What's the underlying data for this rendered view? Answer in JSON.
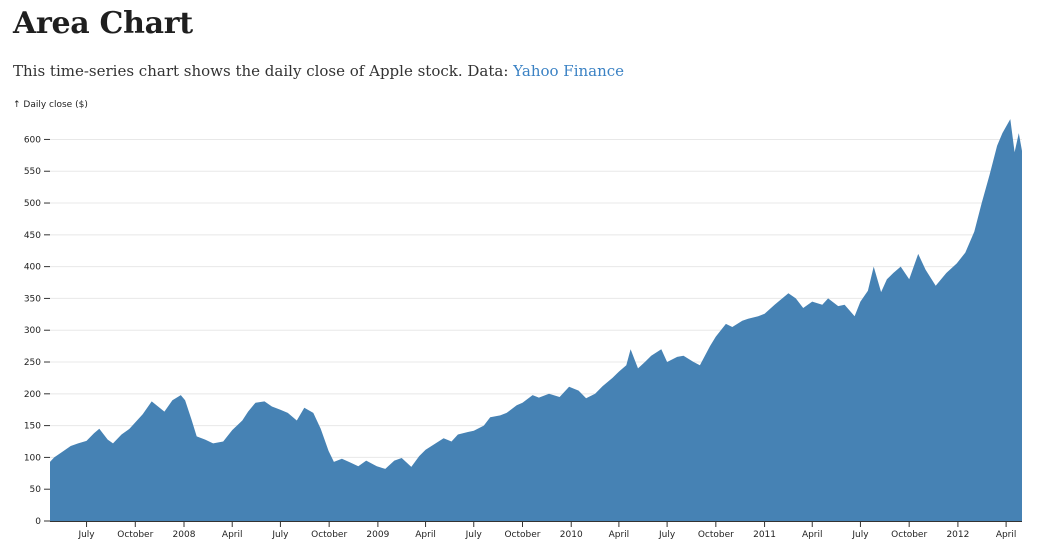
{
  "page": {
    "title": "Area Chart",
    "description": "This time-series chart shows the daily close of Apple stock. Data: ",
    "link_text": "Yahoo Finance"
  },
  "chart_data": {
    "type": "area",
    "ylabel": "↑ Daily close ($)",
    "xlabel": "",
    "ylim": [
      0,
      640
    ],
    "xlim": [
      "2007-04-23",
      "2012-05-01"
    ],
    "grid": "horizontal",
    "fill_color": "#4682b4",
    "y_ticks": [
      0,
      50,
      100,
      150,
      200,
      250,
      300,
      350,
      400,
      450,
      500,
      550,
      600
    ],
    "x_ticks": [
      {
        "date": "2007-07-01",
        "label": "July"
      },
      {
        "date": "2007-10-01",
        "label": "October"
      },
      {
        "date": "2008-01-01",
        "label": "2008"
      },
      {
        "date": "2008-04-01",
        "label": "April"
      },
      {
        "date": "2008-07-01",
        "label": "July"
      },
      {
        "date": "2008-10-01",
        "label": "October"
      },
      {
        "date": "2009-01-01",
        "label": "2009"
      },
      {
        "date": "2009-04-01",
        "label": "April"
      },
      {
        "date": "2009-07-01",
        "label": "July"
      },
      {
        "date": "2009-10-01",
        "label": "October"
      },
      {
        "date": "2010-01-01",
        "label": "2010"
      },
      {
        "date": "2010-04-01",
        "label": "April"
      },
      {
        "date": "2010-07-01",
        "label": "July"
      },
      {
        "date": "2010-10-01",
        "label": "October"
      },
      {
        "date": "2011-01-01",
        "label": "2011"
      },
      {
        "date": "2011-04-01",
        "label": "April"
      },
      {
        "date": "2011-07-01",
        "label": "July"
      },
      {
        "date": "2011-10-01",
        "label": "October"
      },
      {
        "date": "2012-01-01",
        "label": "2012"
      },
      {
        "date": "2012-04-01",
        "label": "April"
      }
    ],
    "series": [
      {
        "points": [
          [
            "2007-04-23",
            93
          ],
          [
            "2007-05-01",
            100
          ],
          [
            "2007-05-15",
            108
          ],
          [
            "2007-06-01",
            118
          ],
          [
            "2007-06-15",
            122
          ],
          [
            "2007-07-01",
            126
          ],
          [
            "2007-07-15",
            138
          ],
          [
            "2007-07-25",
            145
          ],
          [
            "2007-08-10",
            128
          ],
          [
            "2007-08-20",
            122
          ],
          [
            "2007-09-05",
            136
          ],
          [
            "2007-09-20",
            145
          ],
          [
            "2007-10-01",
            155
          ],
          [
            "2007-10-15",
            168
          ],
          [
            "2007-11-01",
            188
          ],
          [
            "2007-11-10",
            182
          ],
          [
            "2007-11-25",
            172
          ],
          [
            "2007-12-10",
            190
          ],
          [
            "2007-12-26",
            198
          ],
          [
            "2008-01-03",
            190
          ],
          [
            "2008-01-15",
            160
          ],
          [
            "2008-01-25",
            133
          ],
          [
            "2008-02-10",
            128
          ],
          [
            "2008-02-25",
            122
          ],
          [
            "2008-03-15",
            125
          ],
          [
            "2008-04-01",
            143
          ],
          [
            "2008-04-20",
            158
          ],
          [
            "2008-05-01",
            172
          ],
          [
            "2008-05-15",
            186
          ],
          [
            "2008-06-01",
            188
          ],
          [
            "2008-06-15",
            180
          ],
          [
            "2008-07-01",
            175
          ],
          [
            "2008-07-15",
            170
          ],
          [
            "2008-08-01",
            158
          ],
          [
            "2008-08-15",
            178
          ],
          [
            "2008-09-01",
            170
          ],
          [
            "2008-09-15",
            145
          ],
          [
            "2008-09-30",
            110
          ],
          [
            "2008-10-10",
            93
          ],
          [
            "2008-10-25",
            98
          ],
          [
            "2008-11-10",
            92
          ],
          [
            "2008-11-25",
            86
          ],
          [
            "2008-12-10",
            95
          ],
          [
            "2008-12-30",
            86
          ],
          [
            "2009-01-15",
            82
          ],
          [
            "2009-02-01",
            95
          ],
          [
            "2009-02-15",
            99
          ],
          [
            "2009-03-05",
            85
          ],
          [
            "2009-03-20",
            102
          ],
          [
            "2009-04-01",
            112
          ],
          [
            "2009-04-20",
            122
          ],
          [
            "2009-05-05",
            130
          ],
          [
            "2009-05-20",
            125
          ],
          [
            "2009-06-01",
            136
          ],
          [
            "2009-06-20",
            140
          ],
          [
            "2009-07-01",
            142
          ],
          [
            "2009-07-20",
            150
          ],
          [
            "2009-08-01",
            163
          ],
          [
            "2009-08-20",
            166
          ],
          [
            "2009-09-01",
            170
          ],
          [
            "2009-09-20",
            182
          ],
          [
            "2009-10-01",
            186
          ],
          [
            "2009-10-20",
            198
          ],
          [
            "2009-11-01",
            194
          ],
          [
            "2009-11-20",
            200
          ],
          [
            "2009-12-10",
            195
          ],
          [
            "2009-12-28",
            211
          ],
          [
            "2010-01-15",
            205
          ],
          [
            "2010-01-29",
            193
          ],
          [
            "2010-02-15",
            200
          ],
          [
            "2010-03-01",
            212
          ],
          [
            "2010-03-20",
            225
          ],
          [
            "2010-04-01",
            235
          ],
          [
            "2010-04-15",
            245
          ],
          [
            "2010-04-23",
            270
          ],
          [
            "2010-05-07",
            240
          ],
          [
            "2010-05-20",
            250
          ],
          [
            "2010-06-01",
            260
          ],
          [
            "2010-06-20",
            270
          ],
          [
            "2010-07-01",
            250
          ],
          [
            "2010-07-20",
            258
          ],
          [
            "2010-08-01",
            260
          ],
          [
            "2010-08-20",
            250
          ],
          [
            "2010-09-01",
            245
          ],
          [
            "2010-09-20",
            275
          ],
          [
            "2010-10-01",
            290
          ],
          [
            "2010-10-20",
            310
          ],
          [
            "2010-11-01",
            305
          ],
          [
            "2010-11-20",
            315
          ],
          [
            "2010-12-01",
            318
          ],
          [
            "2010-12-20",
            322
          ],
          [
            "2011-01-01",
            326
          ],
          [
            "2011-01-20",
            340
          ],
          [
            "2011-02-15",
            358
          ],
          [
            "2011-03-01",
            350
          ],
          [
            "2011-03-15",
            335
          ],
          [
            "2011-04-01",
            345
          ],
          [
            "2011-04-20",
            340
          ],
          [
            "2011-05-01",
            350
          ],
          [
            "2011-05-20",
            338
          ],
          [
            "2011-06-01",
            340
          ],
          [
            "2011-06-20",
            322
          ],
          [
            "2011-07-01",
            345
          ],
          [
            "2011-07-15",
            362
          ],
          [
            "2011-07-26",
            400
          ],
          [
            "2011-08-09",
            360
          ],
          [
            "2011-08-20",
            380
          ],
          [
            "2011-09-01",
            390
          ],
          [
            "2011-09-15",
            400
          ],
          [
            "2011-10-01",
            380
          ],
          [
            "2011-10-18",
            420
          ],
          [
            "2011-11-01",
            395
          ],
          [
            "2011-11-20",
            370
          ],
          [
            "2011-12-10",
            390
          ],
          [
            "2011-12-30",
            405
          ],
          [
            "2012-01-15",
            422
          ],
          [
            "2012-02-01",
            455
          ],
          [
            "2012-02-15",
            500
          ],
          [
            "2012-03-01",
            545
          ],
          [
            "2012-03-15",
            590
          ],
          [
            "2012-03-25",
            610
          ],
          [
            "2012-04-09",
            632
          ],
          [
            "2012-04-17",
            580
          ],
          [
            "2012-04-25",
            610
          ],
          [
            "2012-05-01",
            582
          ]
        ]
      }
    ]
  }
}
